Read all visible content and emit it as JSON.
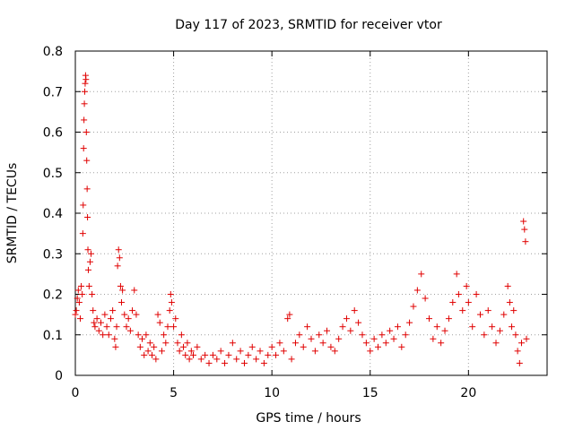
{
  "chart_data": {
    "type": "scatter",
    "title": "Day 117 of 2023, SRMTID for receiver vtor",
    "xlabel": "GPS time / hours",
    "ylabel": "SRMTID / TECUs",
    "xlim": [
      0,
      24
    ],
    "ylim": [
      0,
      0.8
    ],
    "xticks": [
      0,
      5,
      10,
      15,
      20
    ],
    "xtick_labels": [
      "0",
      "5",
      "10",
      "15",
      "20"
    ],
    "yticks": [
      0,
      0.1,
      0.2,
      0.3,
      0.4,
      0.5,
      0.6,
      0.7,
      0.8
    ],
    "ytick_labels": [
      "0",
      "0.1",
      "0.2",
      "0.3",
      "0.4",
      "0.5",
      "0.6",
      "0.7",
      "0.8"
    ],
    "grid": true,
    "marker": "+",
    "color": "#e00000",
    "series": [
      {
        "name": "SRMTID",
        "points": [
          [
            0.0,
            0.15
          ],
          [
            0.05,
            0.16
          ],
          [
            0.1,
            0.19
          ],
          [
            0.15,
            0.21
          ],
          [
            0.2,
            0.18
          ],
          [
            0.25,
            0.14
          ],
          [
            0.3,
            0.22
          ],
          [
            0.35,
            0.2
          ],
          [
            0.38,
            0.35
          ],
          [
            0.4,
            0.42
          ],
          [
            0.42,
            0.56
          ],
          [
            0.44,
            0.63
          ],
          [
            0.46,
            0.67
          ],
          [
            0.48,
            0.7
          ],
          [
            0.5,
            0.72
          ],
          [
            0.52,
            0.74
          ],
          [
            0.54,
            0.73
          ],
          [
            0.56,
            0.6
          ],
          [
            0.58,
            0.53
          ],
          [
            0.6,
            0.46
          ],
          [
            0.62,
            0.39
          ],
          [
            0.64,
            0.31
          ],
          [
            0.66,
            0.26
          ],
          [
            0.7,
            0.22
          ],
          [
            0.75,
            0.28
          ],
          [
            0.8,
            0.3
          ],
          [
            0.85,
            0.2
          ],
          [
            0.9,
            0.16
          ],
          [
            0.95,
            0.13
          ],
          [
            1.0,
            0.12
          ],
          [
            1.1,
            0.14
          ],
          [
            1.2,
            0.11
          ],
          [
            1.3,
            0.13
          ],
          [
            1.4,
            0.1
          ],
          [
            1.5,
            0.15
          ],
          [
            1.6,
            0.12
          ],
          [
            1.7,
            0.1
          ],
          [
            1.8,
            0.14
          ],
          [
            1.9,
            0.16
          ],
          [
            2.0,
            0.09
          ],
          [
            2.05,
            0.07
          ],
          [
            2.1,
            0.12
          ],
          [
            2.15,
            0.27
          ],
          [
            2.2,
            0.31
          ],
          [
            2.25,
            0.29
          ],
          [
            2.3,
            0.22
          ],
          [
            2.35,
            0.18
          ],
          [
            2.4,
            0.21
          ],
          [
            2.5,
            0.15
          ],
          [
            2.6,
            0.12
          ],
          [
            2.7,
            0.14
          ],
          [
            2.8,
            0.11
          ],
          [
            2.9,
            0.16
          ],
          [
            3.0,
            0.21
          ],
          [
            3.1,
            0.15
          ],
          [
            3.2,
            0.1
          ],
          [
            3.3,
            0.07
          ],
          [
            3.4,
            0.09
          ],
          [
            3.5,
            0.05
          ],
          [
            3.6,
            0.1
          ],
          [
            3.7,
            0.06
          ],
          [
            3.8,
            0.08
          ],
          [
            3.9,
            0.05
          ],
          [
            4.0,
            0.07
          ],
          [
            4.1,
            0.04
          ],
          [
            4.2,
            0.15
          ],
          [
            4.3,
            0.13
          ],
          [
            4.4,
            0.06
          ],
          [
            4.5,
            0.1
          ],
          [
            4.6,
            0.08
          ],
          [
            4.7,
            0.12
          ],
          [
            4.8,
            0.16
          ],
          [
            4.85,
            0.2
          ],
          [
            4.9,
            0.18
          ],
          [
            5.0,
            0.12
          ],
          [
            5.1,
            0.14
          ],
          [
            5.2,
            0.08
          ],
          [
            5.3,
            0.06
          ],
          [
            5.4,
            0.1
          ],
          [
            5.5,
            0.07
          ],
          [
            5.6,
            0.05
          ],
          [
            5.7,
            0.08
          ],
          [
            5.8,
            0.04
          ],
          [
            5.9,
            0.06
          ],
          [
            6.0,
            0.05
          ],
          [
            6.2,
            0.07
          ],
          [
            6.4,
            0.04
          ],
          [
            6.6,
            0.05
          ],
          [
            6.8,
            0.03
          ],
          [
            7.0,
            0.05
          ],
          [
            7.2,
            0.04
          ],
          [
            7.4,
            0.06
          ],
          [
            7.6,
            0.03
          ],
          [
            7.8,
            0.05
          ],
          [
            8.0,
            0.08
          ],
          [
            8.2,
            0.04
          ],
          [
            8.4,
            0.06
          ],
          [
            8.6,
            0.03
          ],
          [
            8.8,
            0.05
          ],
          [
            9.0,
            0.07
          ],
          [
            9.2,
            0.04
          ],
          [
            9.4,
            0.06
          ],
          [
            9.6,
            0.03
          ],
          [
            9.8,
            0.05
          ],
          [
            10.0,
            0.07
          ],
          [
            10.2,
            0.05
          ],
          [
            10.4,
            0.08
          ],
          [
            10.6,
            0.06
          ],
          [
            10.8,
            0.14
          ],
          [
            10.9,
            0.15
          ],
          [
            11.0,
            0.04
          ],
          [
            11.2,
            0.08
          ],
          [
            11.4,
            0.1
          ],
          [
            11.6,
            0.07
          ],
          [
            11.8,
            0.12
          ],
          [
            12.0,
            0.09
          ],
          [
            12.2,
            0.06
          ],
          [
            12.4,
            0.1
          ],
          [
            12.6,
            0.08
          ],
          [
            12.8,
            0.11
          ],
          [
            13.0,
            0.07
          ],
          [
            13.2,
            0.06
          ],
          [
            13.4,
            0.09
          ],
          [
            13.6,
            0.12
          ],
          [
            13.8,
            0.14
          ],
          [
            14.0,
            0.11
          ],
          [
            14.2,
            0.16
          ],
          [
            14.4,
            0.13
          ],
          [
            14.6,
            0.1
          ],
          [
            14.8,
            0.08
          ],
          [
            15.0,
            0.06
          ],
          [
            15.2,
            0.09
          ],
          [
            15.4,
            0.07
          ],
          [
            15.6,
            0.1
          ],
          [
            15.8,
            0.08
          ],
          [
            16.0,
            0.11
          ],
          [
            16.2,
            0.09
          ],
          [
            16.4,
            0.12
          ],
          [
            16.6,
            0.07
          ],
          [
            16.8,
            0.1
          ],
          [
            17.0,
            0.13
          ],
          [
            17.2,
            0.17
          ],
          [
            17.4,
            0.21
          ],
          [
            17.6,
            0.25
          ],
          [
            17.8,
            0.19
          ],
          [
            18.0,
            0.14
          ],
          [
            18.2,
            0.09
          ],
          [
            18.4,
            0.12
          ],
          [
            18.6,
            0.08
          ],
          [
            18.8,
            0.11
          ],
          [
            19.0,
            0.14
          ],
          [
            19.2,
            0.18
          ],
          [
            19.4,
            0.25
          ],
          [
            19.5,
            0.2
          ],
          [
            19.7,
            0.16
          ],
          [
            19.9,
            0.22
          ],
          [
            20.0,
            0.18
          ],
          [
            20.2,
            0.12
          ],
          [
            20.4,
            0.2
          ],
          [
            20.6,
            0.15
          ],
          [
            20.8,
            0.1
          ],
          [
            21.0,
            0.16
          ],
          [
            21.2,
            0.12
          ],
          [
            21.4,
            0.08
          ],
          [
            21.6,
            0.11
          ],
          [
            21.8,
            0.15
          ],
          [
            22.0,
            0.22
          ],
          [
            22.1,
            0.18
          ],
          [
            22.2,
            0.12
          ],
          [
            22.3,
            0.16
          ],
          [
            22.4,
            0.1
          ],
          [
            22.5,
            0.06
          ],
          [
            22.6,
            0.03
          ],
          [
            22.7,
            0.08
          ],
          [
            22.8,
            0.38
          ],
          [
            22.85,
            0.36
          ],
          [
            22.9,
            0.33
          ],
          [
            22.95,
            0.09
          ]
        ]
      }
    ]
  }
}
